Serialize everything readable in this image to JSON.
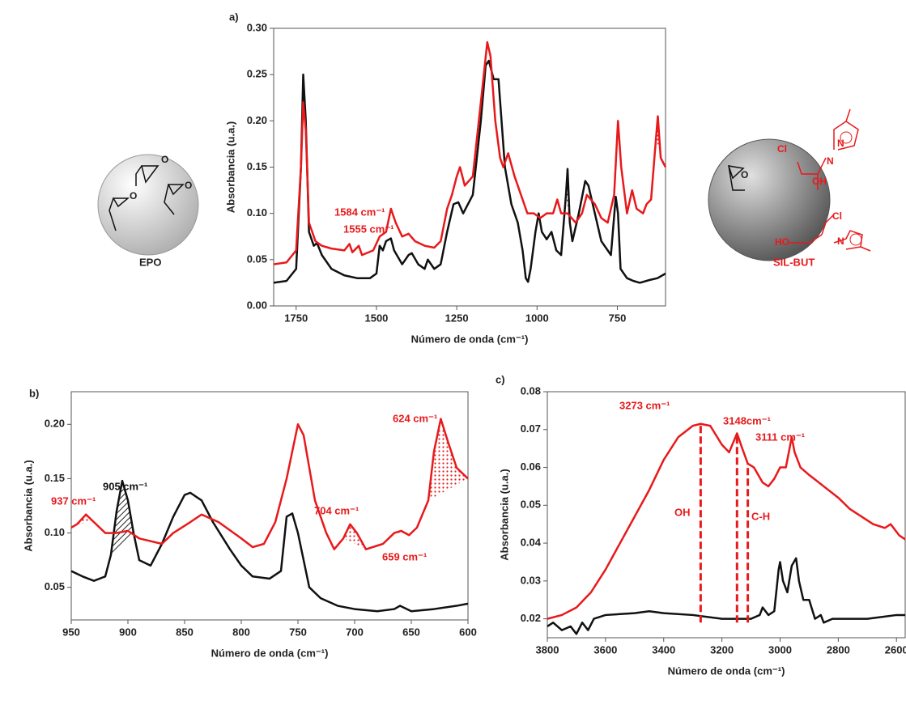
{
  "chart_data": [
    {
      "type": "line",
      "panel_label": "a)",
      "xlabel": "Número de onda (cm⁻¹)",
      "ylabel": "Absorbancia (u.a.)",
      "xlim": [
        1820,
        600
      ],
      "ylim": [
        0,
        0.3
      ],
      "xticks": [
        1750,
        1500,
        1250,
        1000,
        750
      ],
      "yticks": [
        {
          "value": 0,
          "label": "0.00"
        },
        0.05,
        {
          "value": 0.1,
          "label": "0.10"
        },
        0.15,
        {
          "value": 0.2,
          "label": "0.20"
        },
        0.25,
        {
          "value": 0.3,
          "label": "0.30"
        }
      ],
      "series": [
        {
          "color": "#111111",
          "x": [
            1820,
            1780,
            1750,
            1735,
            1728,
            1720,
            1710,
            1695,
            1685,
            1670,
            1640,
            1600,
            1560,
            1520,
            1500,
            1490,
            1480,
            1470,
            1455,
            1445,
            1420,
            1400,
            1390,
            1370,
            1350,
            1340,
            1320,
            1300,
            1280,
            1260,
            1245,
            1230,
            1200,
            1175,
            1160,
            1150,
            1135,
            1120,
            1100,
            1080,
            1060,
            1045,
            1035,
            1028,
            1020,
            1005,
            995,
            985,
            970,
            955,
            940,
            925,
            910,
            905,
            898,
            890,
            870,
            850,
            840,
            820,
            800,
            780,
            770,
            755,
            748,
            740,
            720,
            700,
            680,
            650,
            625,
            600
          ],
          "values": [
            0.025,
            0.027,
            0.04,
            0.15,
            0.25,
            0.2,
            0.08,
            0.065,
            0.068,
            0.055,
            0.04,
            0.033,
            0.03,
            0.03,
            0.035,
            0.065,
            0.06,
            0.07,
            0.073,
            0.06,
            0.045,
            0.055,
            0.057,
            0.045,
            0.04,
            0.05,
            0.04,
            0.045,
            0.08,
            0.11,
            0.112,
            0.1,
            0.12,
            0.2,
            0.26,
            0.265,
            0.245,
            0.245,
            0.15,
            0.11,
            0.09,
            0.06,
            0.03,
            0.026,
            0.04,
            0.08,
            0.1,
            0.08,
            0.072,
            0.08,
            0.06,
            0.055,
            0.12,
            0.148,
            0.09,
            0.07,
            0.1,
            0.135,
            0.13,
            0.1,
            0.07,
            0.06,
            0.055,
            0.118,
            0.1,
            0.04,
            0.03,
            0.027,
            0.025,
            0.028,
            0.03,
            0.035
          ]
        },
        {
          "color": "#e8191b",
          "x": [
            1820,
            1780,
            1750,
            1735,
            1728,
            1720,
            1710,
            1690,
            1670,
            1640,
            1600,
            1584,
            1575,
            1555,
            1545,
            1510,
            1490,
            1470,
            1455,
            1440,
            1420,
            1400,
            1380,
            1350,
            1320,
            1300,
            1280,
            1265,
            1250,
            1240,
            1225,
            1200,
            1175,
            1155,
            1145,
            1130,
            1115,
            1105,
            1090,
            1070,
            1050,
            1030,
            1010,
            990,
            970,
            950,
            937,
            925,
            905,
            880,
            860,
            845,
            820,
            800,
            780,
            760,
            748,
            738,
            720,
            704,
            690,
            670,
            659,
            645,
            630,
            624,
            615,
            600
          ],
          "values": [
            0.045,
            0.047,
            0.06,
            0.15,
            0.22,
            0.19,
            0.09,
            0.07,
            0.065,
            0.062,
            0.06,
            0.067,
            0.058,
            0.065,
            0.055,
            0.06,
            0.075,
            0.08,
            0.105,
            0.09,
            0.075,
            0.078,
            0.07,
            0.065,
            0.063,
            0.07,
            0.105,
            0.12,
            0.14,
            0.15,
            0.13,
            0.14,
            0.22,
            0.285,
            0.27,
            0.2,
            0.16,
            0.15,
            0.165,
            0.14,
            0.12,
            0.1,
            0.1,
            0.095,
            0.1,
            0.1,
            0.115,
            0.1,
            0.1,
            0.09,
            0.1,
            0.12,
            0.11,
            0.095,
            0.09,
            0.12,
            0.2,
            0.15,
            0.1,
            0.125,
            0.105,
            0.1,
            0.11,
            0.115,
            0.18,
            0.205,
            0.16,
            0.15
          ]
        }
      ],
      "shaded": [
        {
          "series": 0,
          "x": [
            915,
            893
          ],
          "pattern": "hatch"
        },
        {
          "series": 1,
          "x": [
            1592,
            1576
          ],
          "pattern": "dots"
        },
        {
          "series": 1,
          "x": [
            1562,
            1547
          ],
          "pattern": "dots"
        },
        {
          "series": 1,
          "x": [
            712,
            692
          ],
          "pattern": "dots"
        },
        {
          "series": 1,
          "x": [
            632,
            600
          ],
          "pattern": "dots"
        }
      ],
      "annotations": [
        {
          "text": "1584 cm⁻¹",
          "color": "#e8191b"
        },
        {
          "text": "1555 cm⁻¹",
          "color": "#e8191b"
        }
      ]
    },
    {
      "type": "line",
      "panel_label": "b)",
      "xlabel": "Número de onda (cm⁻¹)",
      "ylabel": "Absorbancia (u.a.)",
      "xlim": [
        950,
        600
      ],
      "ylim": [
        0.02,
        0.23
      ],
      "xticks": [
        950,
        900,
        850,
        800,
        750,
        700,
        650,
        600
      ],
      "yticks": [
        0.05,
        {
          "value": 0.1,
          "label": "0.10"
        },
        0.15,
        {
          "value": 0.2,
          "label": "0.20"
        }
      ],
      "series": [
        {
          "color": "#111111",
          "x": [
            950,
            940,
            930,
            920,
            915,
            910,
            905,
            900,
            895,
            890,
            880,
            870,
            860,
            850,
            845,
            835,
            825,
            810,
            800,
            790,
            775,
            765,
            760,
            755,
            750,
            745,
            740,
            730,
            715,
            700,
            680,
            665,
            660,
            650,
            630,
            610,
            600
          ],
          "values": [
            0.065,
            0.06,
            0.056,
            0.06,
            0.08,
            0.12,
            0.148,
            0.13,
            0.1,
            0.075,
            0.07,
            0.09,
            0.115,
            0.135,
            0.137,
            0.13,
            0.11,
            0.085,
            0.07,
            0.06,
            0.058,
            0.065,
            0.115,
            0.118,
            0.1,
            0.075,
            0.05,
            0.04,
            0.033,
            0.03,
            0.028,
            0.03,
            0.033,
            0.028,
            0.03,
            0.033,
            0.035
          ]
        },
        {
          "color": "#e8191b",
          "x": [
            950,
            945,
            937,
            930,
            920,
            910,
            900,
            890,
            870,
            860,
            845,
            835,
            820,
            800,
            790,
            780,
            770,
            760,
            750,
            745,
            735,
            725,
            718,
            710,
            704,
            698,
            690,
            675,
            665,
            659,
            652,
            645,
            635,
            630,
            624,
            618,
            610,
            600
          ],
          "values": [
            0.105,
            0.108,
            0.117,
            0.11,
            0.1,
            0.1,
            0.102,
            0.095,
            0.09,
            0.1,
            0.11,
            0.117,
            0.11,
            0.095,
            0.087,
            0.09,
            0.11,
            0.15,
            0.2,
            0.19,
            0.13,
            0.1,
            0.085,
            0.095,
            0.108,
            0.1,
            0.085,
            0.09,
            0.1,
            0.102,
            0.098,
            0.105,
            0.13,
            0.175,
            0.205,
            0.185,
            0.16,
            0.15
          ]
        }
      ],
      "shaded": [
        {
          "series": 0,
          "x": [
            918,
            893
          ],
          "pattern": "hatch"
        },
        {
          "series": 1,
          "x": [
            945,
            925
          ],
          "pattern": "dots"
        },
        {
          "series": 1,
          "x": [
            715,
            690
          ],
          "pattern": "dots"
        },
        {
          "series": 1,
          "x": [
            670,
            648
          ],
          "pattern": "dots"
        },
        {
          "series": 1,
          "x": [
            638,
            600
          ],
          "pattern": "dots"
        }
      ],
      "annotations": [
        {
          "text": "905 cm⁻¹",
          "color": "#111111"
        },
        {
          "text": "937 cm⁻¹",
          "color": "#e8191b"
        },
        {
          "text": "704 cm⁻¹",
          "color": "#e8191b"
        },
        {
          "text": "659 cm⁻¹",
          "color": "#e8191b"
        },
        {
          "text": "624 cm⁻¹",
          "color": "#e8191b"
        }
      ]
    },
    {
      "type": "line",
      "panel_label": "c)",
      "xlabel": "Número de onda (cm⁻¹)",
      "ylabel": "Absorbancia (u.a.)",
      "xlim": [
        3800,
        2570
      ],
      "ylim": [
        0.015,
        0.08
      ],
      "xticks": [
        3800,
        3600,
        3400,
        3200,
        3000,
        2800,
        2600
      ],
      "yticks": [
        0.02,
        0.03,
        0.04,
        0.05,
        0.06,
        0.07,
        0.08
      ],
      "series": [
        {
          "color": "#111111",
          "x": [
            3800,
            3780,
            3750,
            3720,
            3700,
            3680,
            3660,
            3640,
            3600,
            3500,
            3450,
            3400,
            3300,
            3200,
            3100,
            3070,
            3060,
            3040,
            3020,
            3005,
            3000,
            2990,
            2975,
            2960,
            2945,
            2935,
            2920,
            2900,
            2880,
            2860,
            2850,
            2820,
            2700,
            2600,
            2570
          ],
          "values": [
            0.018,
            0.019,
            0.017,
            0.018,
            0.016,
            0.019,
            0.017,
            0.02,
            0.021,
            0.0215,
            0.022,
            0.0215,
            0.021,
            0.02,
            0.02,
            0.021,
            0.023,
            0.021,
            0.022,
            0.033,
            0.035,
            0.03,
            0.027,
            0.034,
            0.036,
            0.03,
            0.025,
            0.025,
            0.02,
            0.021,
            0.019,
            0.02,
            0.02,
            0.021,
            0.021
          ]
        },
        {
          "color": "#e8191b",
          "x": [
            3800,
            3750,
            3700,
            3650,
            3600,
            3550,
            3500,
            3450,
            3400,
            3350,
            3300,
            3273,
            3240,
            3200,
            3175,
            3148,
            3130,
            3111,
            3090,
            3060,
            3040,
            3020,
            3000,
            2980,
            2960,
            2950,
            2930,
            2900,
            2850,
            2800,
            2760,
            2720,
            2680,
            2640,
            2620,
            2590,
            2570
          ],
          "values": [
            0.02,
            0.021,
            0.023,
            0.027,
            0.033,
            0.04,
            0.047,
            0.054,
            0.062,
            0.068,
            0.071,
            0.0715,
            0.071,
            0.066,
            0.064,
            0.069,
            0.065,
            0.061,
            0.06,
            0.056,
            0.055,
            0.057,
            0.06,
            0.06,
            0.068,
            0.064,
            0.06,
            0.058,
            0.055,
            0.052,
            0.049,
            0.047,
            0.045,
            0.044,
            0.045,
            0.042,
            0.041
          ]
        }
      ],
      "markers": [
        {
          "x": 3273,
          "y": 0.0715,
          "y0": 0.019
        },
        {
          "x": 3148,
          "y": 0.069,
          "y0": 0.019
        },
        {
          "x": 3111,
          "y": 0.061,
          "y0": 0.019
        }
      ],
      "annotations": [
        {
          "text": "3273 cm⁻¹",
          "color": "#e8191b"
        },
        {
          "text": "3148cm⁻¹",
          "color": "#e8191b"
        },
        {
          "text": "3111 cm⁻¹",
          "color": "#e8191b"
        },
        {
          "text": "OH",
          "color": "#e8191b"
        },
        {
          "text": "C-H",
          "color": "#e8191b"
        }
      ]
    }
  ],
  "diagrams": {
    "left": {
      "label": "EPO",
      "atoms": [
        "O",
        "O",
        "O"
      ]
    },
    "right": {
      "label": "SIL-BUT",
      "atoms": [
        "O",
        "Cl",
        "N",
        "OH",
        "Cl",
        "HO",
        "N",
        "N"
      ]
    }
  }
}
